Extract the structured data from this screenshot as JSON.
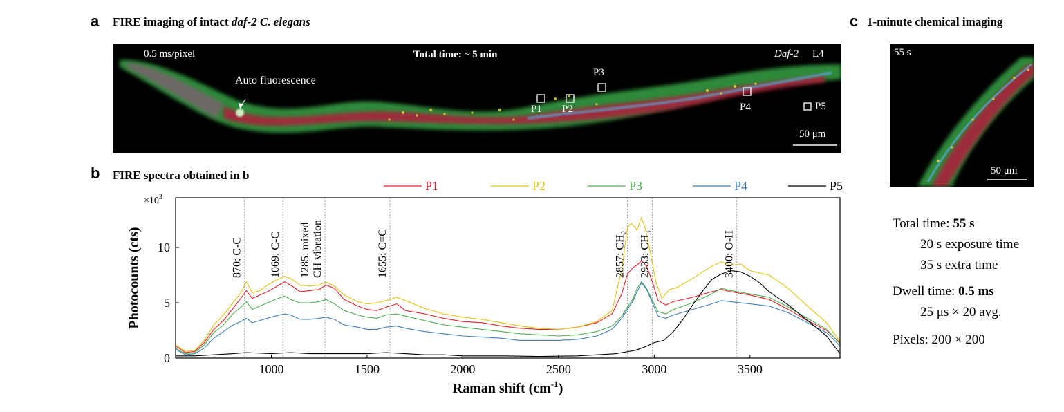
{
  "panel_a": {
    "letter": "a",
    "title_prefix": "FIRE imaging of intact ",
    "title_italic": "daf-2 C. elegans",
    "pixel_time": "0.5 ms/pixel",
    "total_time": "Total time: ~ 5 min",
    "strain": "Daf-2",
    "stage": "L4",
    "autofluor_label": "Auto fluorescence",
    "scale_bar": "50 μm",
    "points": [
      "P1",
      "P2",
      "P3",
      "P4",
      "P5"
    ]
  },
  "panel_b": {
    "letter": "b",
    "title": "FIRE spectra obtained in b"
  },
  "panel_c": {
    "letter": "c",
    "title": "1-minute chemical imaging",
    "time_label": "55 s",
    "scale_bar": "50 μm",
    "total_time_label": "Total time: ",
    "total_time_value": "55 s",
    "exposure": "20 s exposure time",
    "extra": "35 s extra time",
    "dwell_label": "Dwell time: ",
    "dwell_value": "0.5 ms",
    "avg": "25 μs × 20 avg.",
    "pixels": "Pixels:  200 × 200"
  },
  "chart_data": {
    "type": "line",
    "xlabel": "Raman shift (cm",
    "xlabel_sup": "-1",
    "xlabel_end": ")",
    "ylabel": "Photocounts (cts)",
    "y_multiplier": "×10",
    "y_multiplier_sup": "3",
    "xlim": [
      500,
      3970
    ],
    "ylim": [
      0,
      14.5
    ],
    "x_ticks": [
      1000,
      1500,
      2000,
      2500,
      3000,
      3500
    ],
    "y_ticks": [
      0,
      5,
      10
    ],
    "grid": false,
    "legend_position": "top",
    "series": [
      {
        "name": "P1",
        "color": "#e8202a",
        "points": [
          [
            500,
            1.1
          ],
          [
            550,
            0.5
          ],
          [
            600,
            0.6
          ],
          [
            650,
            1.4
          ],
          [
            700,
            2.6
          ],
          [
            750,
            3.4
          ],
          [
            800,
            4.5
          ],
          [
            840,
            5.4
          ],
          [
            870,
            6.1
          ],
          [
            900,
            5.4
          ],
          [
            940,
            5.7
          ],
          [
            980,
            6.0
          ],
          [
            1020,
            6.4
          ],
          [
            1069,
            6.9
          ],
          [
            1100,
            6.6
          ],
          [
            1150,
            6.0
          ],
          [
            1200,
            6.1
          ],
          [
            1250,
            6.2
          ],
          [
            1285,
            6.6
          ],
          [
            1330,
            6.3
          ],
          [
            1380,
            5.3
          ],
          [
            1450,
            4.7
          ],
          [
            1500,
            4.4
          ],
          [
            1550,
            4.3
          ],
          [
            1600,
            4.6
          ],
          [
            1655,
            4.9
          ],
          [
            1700,
            4.3
          ],
          [
            1800,
            4.0
          ],
          [
            1900,
            3.6
          ],
          [
            2000,
            3.3
          ],
          [
            2100,
            3.2
          ],
          [
            2200,
            2.9
          ],
          [
            2300,
            2.7
          ],
          [
            2400,
            2.6
          ],
          [
            2500,
            2.6
          ],
          [
            2600,
            2.8
          ],
          [
            2700,
            3.2
          ],
          [
            2780,
            4.0
          ],
          [
            2830,
            5.8
          ],
          [
            2860,
            7.6
          ],
          [
            2890,
            8.2
          ],
          [
            2910,
            8.4
          ],
          [
            2933,
            8.8
          ],
          [
            2960,
            8.3
          ],
          [
            2990,
            6.9
          ],
          [
            3020,
            5.2
          ],
          [
            3060,
            4.8
          ],
          [
            3100,
            5.1
          ],
          [
            3200,
            5.5
          ],
          [
            3300,
            6.0
          ],
          [
            3350,
            6.2
          ],
          [
            3400,
            6.0
          ],
          [
            3500,
            5.7
          ],
          [
            3600,
            5.3
          ],
          [
            3700,
            4.4
          ],
          [
            3800,
            3.4
          ],
          [
            3900,
            2.5
          ],
          [
            3970,
            1.4
          ]
        ]
      },
      {
        "name": "P2",
        "color": "#e6c212",
        "points": [
          [
            500,
            1.2
          ],
          [
            550,
            0.6
          ],
          [
            600,
            0.7
          ],
          [
            650,
            1.6
          ],
          [
            700,
            3.0
          ],
          [
            750,
            3.9
          ],
          [
            800,
            5.0
          ],
          [
            840,
            5.9
          ],
          [
            870,
            6.9
          ],
          [
            900,
            5.9
          ],
          [
            940,
            6.1
          ],
          [
            980,
            6.6
          ],
          [
            1020,
            7.0
          ],
          [
            1069,
            7.4
          ],
          [
            1100,
            7.2
          ],
          [
            1150,
            6.6
          ],
          [
            1200,
            6.5
          ],
          [
            1250,
            6.6
          ],
          [
            1285,
            6.9
          ],
          [
            1330,
            6.5
          ],
          [
            1380,
            5.7
          ],
          [
            1450,
            5.1
          ],
          [
            1500,
            4.9
          ],
          [
            1550,
            5.0
          ],
          [
            1600,
            5.2
          ],
          [
            1655,
            5.5
          ],
          [
            1700,
            5.2
          ],
          [
            1800,
            4.5
          ],
          [
            1900,
            4.0
          ],
          [
            2000,
            3.7
          ],
          [
            2100,
            3.5
          ],
          [
            2200,
            3.2
          ],
          [
            2300,
            2.9
          ],
          [
            2400,
            2.7
          ],
          [
            2500,
            2.6
          ],
          [
            2600,
            2.8
          ],
          [
            2700,
            3.3
          ],
          [
            2780,
            4.3
          ],
          [
            2830,
            8.0
          ],
          [
            2860,
            11.8
          ],
          [
            2880,
            12.2
          ],
          [
            2910,
            11.6
          ],
          [
            2933,
            12.7
          ],
          [
            2950,
            11.9
          ],
          [
            2980,
            9.5
          ],
          [
            3010,
            6.8
          ],
          [
            3040,
            5.4
          ],
          [
            3080,
            6.2
          ],
          [
            3120,
            6.4
          ],
          [
            3200,
            7.2
          ],
          [
            3300,
            8.3
          ],
          [
            3350,
            8.7
          ],
          [
            3400,
            8.4
          ],
          [
            3450,
            8.5
          ],
          [
            3500,
            7.9
          ],
          [
            3600,
            7.5
          ],
          [
            3700,
            6.3
          ],
          [
            3800,
            4.7
          ],
          [
            3900,
            3.2
          ],
          [
            3970,
            1.5
          ]
        ]
      },
      {
        "name": "P3",
        "color": "#4caf50",
        "points": [
          [
            500,
            0.9
          ],
          [
            550,
            0.4
          ],
          [
            600,
            0.5
          ],
          [
            650,
            1.2
          ],
          [
            700,
            2.3
          ],
          [
            750,
            3.0
          ],
          [
            800,
            4.0
          ],
          [
            840,
            4.6
          ],
          [
            870,
            5.1
          ],
          [
            900,
            4.4
          ],
          [
            940,
            4.7
          ],
          [
            980,
            5.0
          ],
          [
            1020,
            5.3
          ],
          [
            1069,
            5.6
          ],
          [
            1100,
            5.3
          ],
          [
            1150,
            5.0
          ],
          [
            1200,
            5.0
          ],
          [
            1250,
            5.1
          ],
          [
            1285,
            5.3
          ],
          [
            1330,
            4.9
          ],
          [
            1380,
            4.3
          ],
          [
            1450,
            3.9
          ],
          [
            1500,
            3.7
          ],
          [
            1550,
            3.6
          ],
          [
            1600,
            3.9
          ],
          [
            1655,
            4.0
          ],
          [
            1700,
            3.8
          ],
          [
            1800,
            3.4
          ],
          [
            1900,
            3.0
          ],
          [
            2000,
            2.8
          ],
          [
            2100,
            2.6
          ],
          [
            2200,
            2.4
          ],
          [
            2300,
            2.2
          ],
          [
            2400,
            2.1
          ],
          [
            2500,
            2.0
          ],
          [
            2600,
            2.1
          ],
          [
            2700,
            2.4
          ],
          [
            2780,
            2.9
          ],
          [
            2830,
            3.8
          ],
          [
            2860,
            4.6
          ],
          [
            2890,
            5.4
          ],
          [
            2910,
            6.3
          ],
          [
            2933,
            6.9
          ],
          [
            2960,
            6.3
          ],
          [
            2990,
            5.2
          ],
          [
            3020,
            4.2
          ],
          [
            3060,
            4.0
          ],
          [
            3100,
            4.4
          ],
          [
            3200,
            5.0
          ],
          [
            3300,
            5.8
          ],
          [
            3350,
            6.3
          ],
          [
            3400,
            6.1
          ],
          [
            3500,
            5.8
          ],
          [
            3600,
            5.5
          ],
          [
            3700,
            4.6
          ],
          [
            3800,
            3.6
          ],
          [
            3900,
            2.6
          ],
          [
            3970,
            1.3
          ]
        ]
      },
      {
        "name": "P4",
        "color": "#3f7fc0",
        "points": [
          [
            500,
            0.8
          ],
          [
            550,
            0.3
          ],
          [
            600,
            0.4
          ],
          [
            650,
            0.9
          ],
          [
            700,
            1.8
          ],
          [
            750,
            2.4
          ],
          [
            800,
            3.0
          ],
          [
            840,
            3.3
          ],
          [
            870,
            3.6
          ],
          [
            900,
            3.2
          ],
          [
            940,
            3.4
          ],
          [
            980,
            3.6
          ],
          [
            1020,
            3.8
          ],
          [
            1069,
            4.0
          ],
          [
            1100,
            3.9
          ],
          [
            1150,
            3.5
          ],
          [
            1200,
            3.5
          ],
          [
            1250,
            3.6
          ],
          [
            1285,
            3.7
          ],
          [
            1330,
            3.5
          ],
          [
            1380,
            3.0
          ],
          [
            1450,
            2.8
          ],
          [
            1500,
            2.6
          ],
          [
            1550,
            2.6
          ],
          [
            1600,
            2.8
          ],
          [
            1655,
            2.9
          ],
          [
            1700,
            2.7
          ],
          [
            1800,
            2.4
          ],
          [
            1900,
            2.2
          ],
          [
            2000,
            2.0
          ],
          [
            2100,
            1.9
          ],
          [
            2200,
            1.8
          ],
          [
            2300,
            1.6
          ],
          [
            2400,
            1.6
          ],
          [
            2500,
            1.6
          ],
          [
            2600,
            1.7
          ],
          [
            2700,
            2.0
          ],
          [
            2780,
            2.6
          ],
          [
            2830,
            3.6
          ],
          [
            2860,
            4.4
          ],
          [
            2890,
            5.2
          ],
          [
            2910,
            6.0
          ],
          [
            2933,
            6.8
          ],
          [
            2960,
            6.2
          ],
          [
            2990,
            5.0
          ],
          [
            3020,
            3.8
          ],
          [
            3060,
            3.6
          ],
          [
            3100,
            3.9
          ],
          [
            3200,
            4.4
          ],
          [
            3300,
            4.9
          ],
          [
            3350,
            5.2
          ],
          [
            3400,
            5.1
          ],
          [
            3500,
            4.9
          ],
          [
            3600,
            4.7
          ],
          [
            3700,
            4.1
          ],
          [
            3800,
            3.2
          ],
          [
            3900,
            2.3
          ],
          [
            3970,
            1.1
          ]
        ]
      },
      {
        "name": "P5",
        "color": "#000000",
        "points": [
          [
            500,
            0.2
          ],
          [
            600,
            0.2
          ],
          [
            700,
            0.3
          ],
          [
            800,
            0.4
          ],
          [
            870,
            0.5
          ],
          [
            1000,
            0.4
          ],
          [
            1100,
            0.5
          ],
          [
            1200,
            0.4
          ],
          [
            1300,
            0.4
          ],
          [
            1500,
            0.4
          ],
          [
            1600,
            0.5
          ],
          [
            1700,
            0.4
          ],
          [
            1800,
            0.3
          ],
          [
            1900,
            0.3
          ],
          [
            2000,
            0.2
          ],
          [
            2200,
            0.2
          ],
          [
            2400,
            0.15
          ],
          [
            2600,
            0.2
          ],
          [
            2800,
            0.4
          ],
          [
            2900,
            0.7
          ],
          [
            2950,
            1.0
          ],
          [
            3000,
            1.4
          ],
          [
            3050,
            1.6
          ],
          [
            3100,
            2.4
          ],
          [
            3150,
            3.5
          ],
          [
            3200,
            4.8
          ],
          [
            3250,
            6.0
          ],
          [
            3300,
            7.1
          ],
          [
            3350,
            7.6
          ],
          [
            3400,
            7.9
          ],
          [
            3450,
            7.8
          ],
          [
            3500,
            7.4
          ],
          [
            3550,
            6.8
          ],
          [
            3600,
            6.0
          ],
          [
            3700,
            4.8
          ],
          [
            3800,
            3.4
          ],
          [
            3900,
            2.0
          ],
          [
            3970,
            0.4
          ]
        ]
      }
    ],
    "annotations": [
      {
        "x": 860,
        "lines": [
          "870: C-C"
        ]
      },
      {
        "x": 1060,
        "lines": [
          "1069: C-C"
        ]
      },
      {
        "x": 1280,
        "lines": [
          "1285: mixed",
          "CH vibration"
        ]
      },
      {
        "x": 1620,
        "lines": [
          "1655: C=C"
        ]
      },
      {
        "x": 2860,
        "lines": [
          "2857: CH"
        ],
        "sub": "2"
      },
      {
        "x": 2990,
        "lines": [
          "2933: CH"
        ],
        "sub": "3"
      },
      {
        "x": 3430,
        "lines": [
          "3400: O-H"
        ]
      }
    ]
  }
}
